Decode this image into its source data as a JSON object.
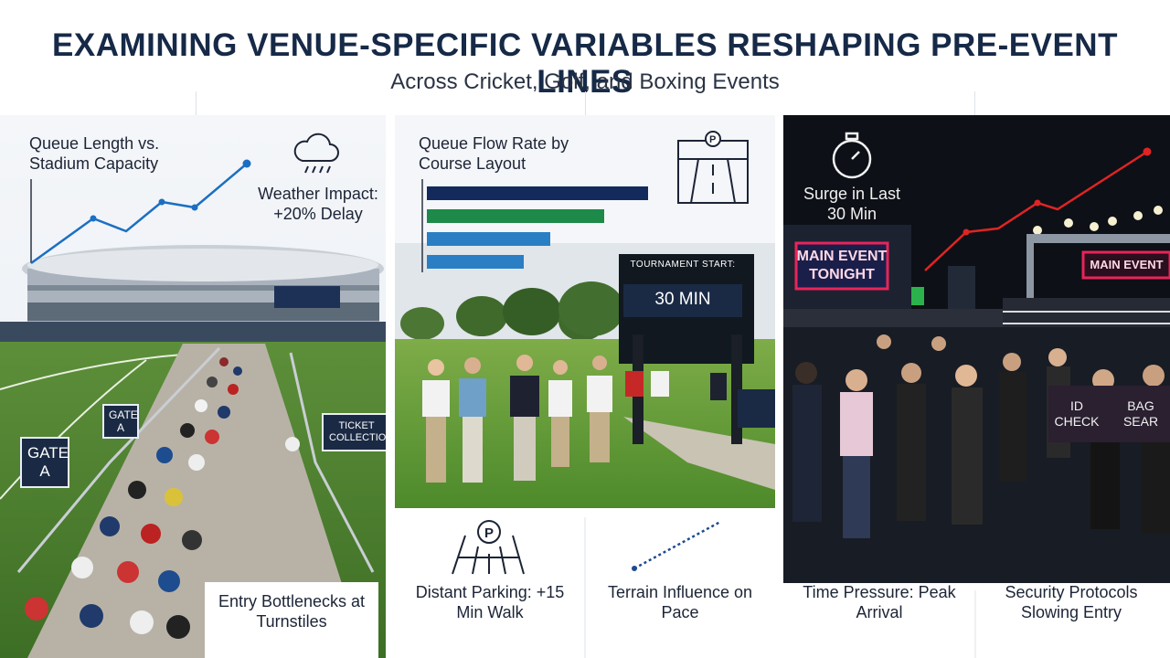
{
  "header": {
    "title": "EXAMINING VENUE-SPECIFIC VARIABLES RESHAPING PRE-EVENT LINES",
    "subtitle": "Across Cricket, Golf, and Boxing Events"
  },
  "cricket": {
    "chart_title": "Queue Length vs. Stadium Capacity",
    "weather_label": "Weather Impact: +20% Delay",
    "gate_sign": "GATE A",
    "gate_sign_small": "GATE A",
    "ticket_sign": "TICKET COLLECTION",
    "caption": "Entry Bottlenecks at Turnstiles",
    "accent": "#1b6fc2"
  },
  "golf": {
    "chart_title": "Queue Flow Rate by Course Layout",
    "scoreboard_label": "TOURNAMENT START:",
    "scoreboard_value": "30 MIN",
    "caption_left": "Distant Parking: +15 Min Walk",
    "caption_right": "Terrain Influence on Pace",
    "bar_colors": [
      "#142a5c",
      "#1e8a4a",
      "#2a7fc4",
      "#2a7fc4"
    ]
  },
  "boxing": {
    "surge_label": "Surge in Last 30 Min",
    "neon_sign": "MAIN EVENT TONIGHT",
    "neon_sign_right": "MAIN EVENT",
    "id_sign": "ID CHECK",
    "bag_sign": "BAG SEAR",
    "caption_left": "Time Pressure: Peak Arrival",
    "caption_right": "Security Protocols Slowing Entry",
    "accent": "#e02424"
  }
}
